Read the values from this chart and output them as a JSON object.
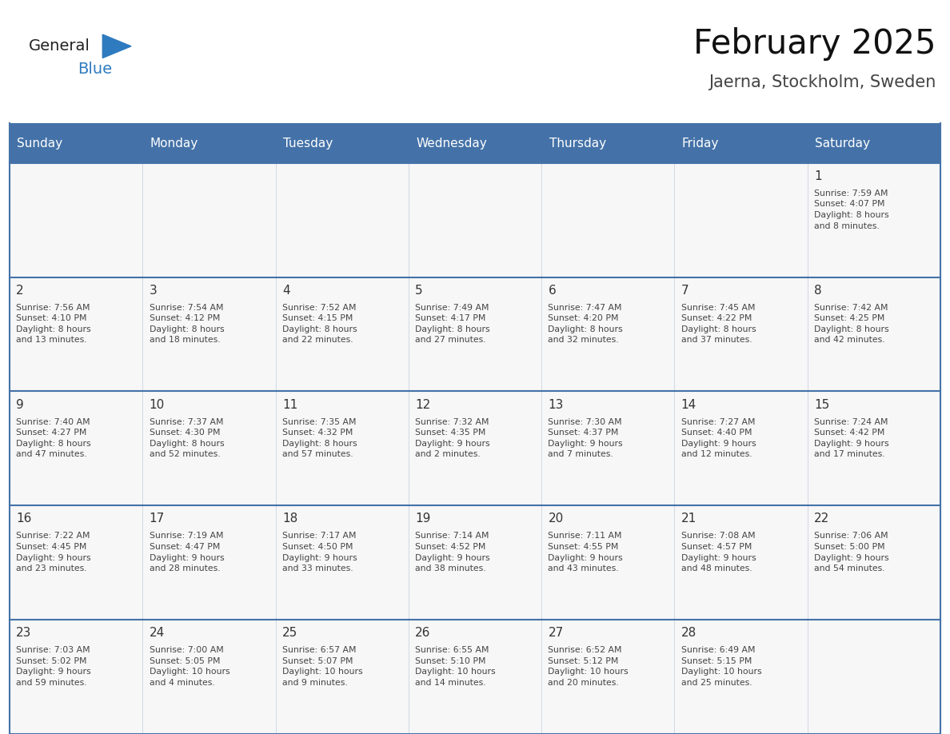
{
  "title": "February 2025",
  "subtitle": "Jaerna, Stockholm, Sweden",
  "days_of_week": [
    "Sunday",
    "Monday",
    "Tuesday",
    "Wednesday",
    "Thursday",
    "Friday",
    "Saturday"
  ],
  "header_bg": "#4472a8",
  "header_text": "#ffffff",
  "cell_bg": "#f7f7f7",
  "line_color": "#4472a8",
  "text_color": "#444444",
  "day_number_color": "#333333",
  "logo_general_color": "#222222",
  "logo_blue_color": "#2e7bbf",
  "calendar_data": [
    [
      {
        "day": null,
        "info": null
      },
      {
        "day": null,
        "info": null
      },
      {
        "day": null,
        "info": null
      },
      {
        "day": null,
        "info": null
      },
      {
        "day": null,
        "info": null
      },
      {
        "day": null,
        "info": null
      },
      {
        "day": 1,
        "info": "Sunrise: 7:59 AM\nSunset: 4:07 PM\nDaylight: 8 hours\nand 8 minutes."
      }
    ],
    [
      {
        "day": 2,
        "info": "Sunrise: 7:56 AM\nSunset: 4:10 PM\nDaylight: 8 hours\nand 13 minutes."
      },
      {
        "day": 3,
        "info": "Sunrise: 7:54 AM\nSunset: 4:12 PM\nDaylight: 8 hours\nand 18 minutes."
      },
      {
        "day": 4,
        "info": "Sunrise: 7:52 AM\nSunset: 4:15 PM\nDaylight: 8 hours\nand 22 minutes."
      },
      {
        "day": 5,
        "info": "Sunrise: 7:49 AM\nSunset: 4:17 PM\nDaylight: 8 hours\nand 27 minutes."
      },
      {
        "day": 6,
        "info": "Sunrise: 7:47 AM\nSunset: 4:20 PM\nDaylight: 8 hours\nand 32 minutes."
      },
      {
        "day": 7,
        "info": "Sunrise: 7:45 AM\nSunset: 4:22 PM\nDaylight: 8 hours\nand 37 minutes."
      },
      {
        "day": 8,
        "info": "Sunrise: 7:42 AM\nSunset: 4:25 PM\nDaylight: 8 hours\nand 42 minutes."
      }
    ],
    [
      {
        "day": 9,
        "info": "Sunrise: 7:40 AM\nSunset: 4:27 PM\nDaylight: 8 hours\nand 47 minutes."
      },
      {
        "day": 10,
        "info": "Sunrise: 7:37 AM\nSunset: 4:30 PM\nDaylight: 8 hours\nand 52 minutes."
      },
      {
        "day": 11,
        "info": "Sunrise: 7:35 AM\nSunset: 4:32 PM\nDaylight: 8 hours\nand 57 minutes."
      },
      {
        "day": 12,
        "info": "Sunrise: 7:32 AM\nSunset: 4:35 PM\nDaylight: 9 hours\nand 2 minutes."
      },
      {
        "day": 13,
        "info": "Sunrise: 7:30 AM\nSunset: 4:37 PM\nDaylight: 9 hours\nand 7 minutes."
      },
      {
        "day": 14,
        "info": "Sunrise: 7:27 AM\nSunset: 4:40 PM\nDaylight: 9 hours\nand 12 minutes."
      },
      {
        "day": 15,
        "info": "Sunrise: 7:24 AM\nSunset: 4:42 PM\nDaylight: 9 hours\nand 17 minutes."
      }
    ],
    [
      {
        "day": 16,
        "info": "Sunrise: 7:22 AM\nSunset: 4:45 PM\nDaylight: 9 hours\nand 23 minutes."
      },
      {
        "day": 17,
        "info": "Sunrise: 7:19 AM\nSunset: 4:47 PM\nDaylight: 9 hours\nand 28 minutes."
      },
      {
        "day": 18,
        "info": "Sunrise: 7:17 AM\nSunset: 4:50 PM\nDaylight: 9 hours\nand 33 minutes."
      },
      {
        "day": 19,
        "info": "Sunrise: 7:14 AM\nSunset: 4:52 PM\nDaylight: 9 hours\nand 38 minutes."
      },
      {
        "day": 20,
        "info": "Sunrise: 7:11 AM\nSunset: 4:55 PM\nDaylight: 9 hours\nand 43 minutes."
      },
      {
        "day": 21,
        "info": "Sunrise: 7:08 AM\nSunset: 4:57 PM\nDaylight: 9 hours\nand 48 minutes."
      },
      {
        "day": 22,
        "info": "Sunrise: 7:06 AM\nSunset: 5:00 PM\nDaylight: 9 hours\nand 54 minutes."
      }
    ],
    [
      {
        "day": 23,
        "info": "Sunrise: 7:03 AM\nSunset: 5:02 PM\nDaylight: 9 hours\nand 59 minutes."
      },
      {
        "day": 24,
        "info": "Sunrise: 7:00 AM\nSunset: 5:05 PM\nDaylight: 10 hours\nand 4 minutes."
      },
      {
        "day": 25,
        "info": "Sunrise: 6:57 AM\nSunset: 5:07 PM\nDaylight: 10 hours\nand 9 minutes."
      },
      {
        "day": 26,
        "info": "Sunrise: 6:55 AM\nSunset: 5:10 PM\nDaylight: 10 hours\nand 14 minutes."
      },
      {
        "day": 27,
        "info": "Sunrise: 6:52 AM\nSunset: 5:12 PM\nDaylight: 10 hours\nand 20 minutes."
      },
      {
        "day": 28,
        "info": "Sunrise: 6:49 AM\nSunset: 5:15 PM\nDaylight: 10 hours\nand 25 minutes."
      },
      {
        "day": null,
        "info": null
      }
    ]
  ]
}
